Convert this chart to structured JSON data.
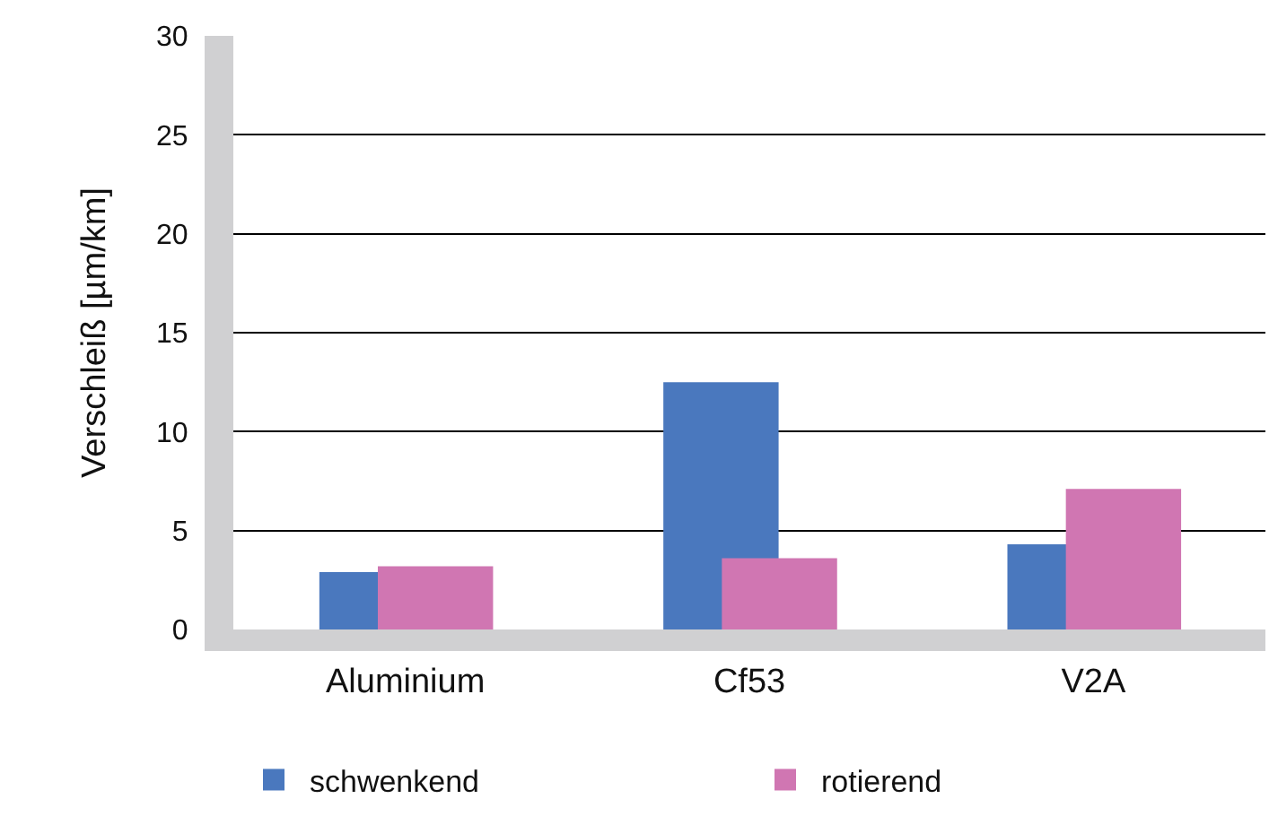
{
  "chart_data": {
    "type": "bar",
    "ylabel": "Verschleiß [µm/km]",
    "categories": [
      "Aluminium",
      "Cf53",
      "V2A"
    ],
    "series": [
      {
        "name": "schwenkend",
        "color": "#4a78be",
        "values": [
          2.9,
          12.5,
          4.3
        ]
      },
      {
        "name": "rotierend",
        "color": "#d076b2",
        "values": [
          3.2,
          3.6,
          7.1
        ]
      }
    ],
    "ylim": [
      0,
      30
    ],
    "yticks": [
      0,
      5,
      10,
      15,
      20,
      25,
      30
    ],
    "grid": "y",
    "legend": "bottom"
  }
}
